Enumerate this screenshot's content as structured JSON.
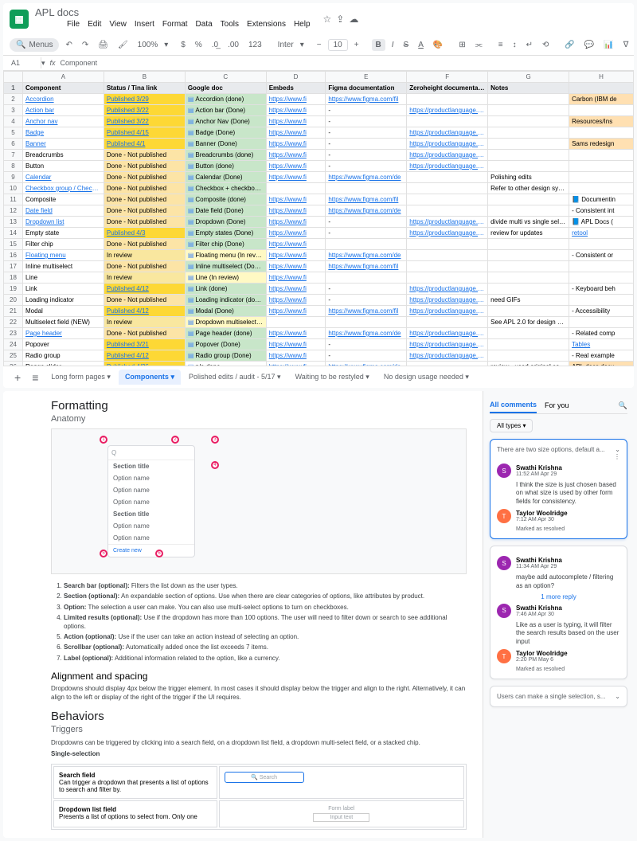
{
  "sheets": {
    "title": "APL docs",
    "menus": [
      "File",
      "Edit",
      "View",
      "Insert",
      "Format",
      "Data",
      "Tools",
      "Extensions",
      "Help"
    ],
    "toolbar": {
      "menus_btn": "Menus",
      "zoom": "100%",
      "currency": "$",
      "percent": "%",
      "decimal": ".0",
      "decimal2": ".00",
      "format_num": "123",
      "font": "Inter",
      "fontsize": "10",
      "minus": "−",
      "plus": "+"
    },
    "formula": {
      "cell": "A1",
      "value": "Component"
    },
    "columns": [
      "",
      "A",
      "B",
      "C",
      "D",
      "E",
      "F",
      "G",
      "H"
    ],
    "headers": [
      "Component",
      "Status / Tina link",
      "Google doc",
      "Embeds",
      "Figma documentation",
      "Zeroheight documentation",
      "Notes",
      ""
    ],
    "rows": [
      {
        "n": 2,
        "comp": "Accordion",
        "compLink": true,
        "status": "Published 3/29",
        "statusClass": "status-pub",
        "gdoc": "Accordion (done)",
        "gdocClass": "gdoc-done",
        "embed": "https://www.fi",
        "figma": "https://www.figma.com/fil",
        "zh": "",
        "notes": "",
        "h": "Carbon (IBM de",
        "hClass": "col-h"
      },
      {
        "n": 3,
        "comp": "Action bar",
        "compLink": true,
        "status": "Published 3/22",
        "statusClass": "status-pub",
        "gdoc": "Action bar (Done)",
        "gdocClass": "gdoc-done",
        "embed": "https://www.fi",
        "figma": "-",
        "zh": "https://productlanguage.adde",
        "notes": "",
        "h": ""
      },
      {
        "n": 4,
        "comp": "Anchor nav",
        "compLink": true,
        "status": "Published 3/22",
        "statusClass": "status-pub",
        "gdoc": "Anchor Nav (Done)",
        "gdocClass": "gdoc-done",
        "embed": "https://www.fi",
        "figma": "-",
        "zh": "",
        "notes": "",
        "h": "Resources/Ins",
        "hClass": "col-h"
      },
      {
        "n": 5,
        "comp": "Badge",
        "compLink": true,
        "status": "Published 4/15",
        "statusClass": "status-pub",
        "gdoc": "Badge (Done)",
        "gdocClass": "gdoc-done",
        "embed": "https://www.fi",
        "figma": "-",
        "zh": "https://productlanguage.adde",
        "notes": "",
        "h": ""
      },
      {
        "n": 6,
        "comp": "Banner",
        "compLink": true,
        "status": "Published 4/1",
        "statusClass": "status-pub",
        "gdoc": "Banner (Done)",
        "gdocClass": "gdoc-done",
        "embed": "https://www.fi",
        "figma": "-",
        "zh": "https://productlanguage.adde",
        "notes": "",
        "h": "Sams redesign",
        "hClass": "col-h"
      },
      {
        "n": 7,
        "comp": "Breadcrumbs",
        "status": "Done - Not published",
        "statusClass": "status-notpub",
        "gdoc": "Breadcrumbs (done)",
        "gdocClass": "gdoc-done",
        "embed": "https://www.fi",
        "figma": "-",
        "zh": "https://productlanguage.adde",
        "notes": "",
        "h": ""
      },
      {
        "n": 8,
        "comp": "Button",
        "status": "Done - Not published",
        "statusClass": "status-notpub",
        "gdoc": "Button (done)",
        "gdocClass": "gdoc-done",
        "embed": "https://www.fi",
        "figma": "-",
        "zh": "https://productlanguage.adde",
        "notes": "",
        "h": ""
      },
      {
        "n": 9,
        "comp": "Calendar",
        "compLink": true,
        "status": "Done - Not published",
        "statusClass": "status-notpub",
        "gdoc": "Calendar (Done)",
        "gdocClass": "gdoc-done",
        "embed": "https://www.fi",
        "figma": "https://www.figma.com/de",
        "zh": "",
        "notes": "Polishing edits",
        "h": ""
      },
      {
        "n": 10,
        "comp": "Checkbox group / Checkbox",
        "compLink": true,
        "status": "Done - Not published",
        "statusClass": "status-notpub",
        "gdoc": "Checkbox + checkbox group (done)",
        "gdocClass": "gdoc-done",
        "embed": "",
        "figma": "",
        "zh": "",
        "notes": "Refer to other design systems",
        "h": ""
      },
      {
        "n": 11,
        "comp": "Composite",
        "status": "Done - Not published",
        "statusClass": "status-notpub",
        "gdoc": "Composite (done)",
        "gdocClass": "gdoc-done",
        "embed": "https://www.fi",
        "figma": "https://www.figma.com/fil",
        "zh": "",
        "notes": "",
        "h": "📘 Documentin"
      },
      {
        "n": 12,
        "comp": "Date field",
        "compLink": true,
        "status": "Done - Not published",
        "statusClass": "status-notpub",
        "gdoc": "Date field (Done)",
        "gdocClass": "gdoc-done",
        "embed": "https://www.fi",
        "figma": "https://www.figma.com/de",
        "zh": "",
        "notes": "",
        "h": "- Consistent int"
      },
      {
        "n": 13,
        "comp": "Dropdown list",
        "compLink": true,
        "status": "Done - Not published",
        "statusClass": "status-notpub",
        "gdoc": "Dropdown (Done)",
        "gdocClass": "gdoc-done",
        "embed": "https://www.fi",
        "figma": "-",
        "zh": "https://productlanguage.adde",
        "notes": "divide multi vs single select",
        "h": "📘 APL Docs ("
      },
      {
        "n": 14,
        "comp": "Empty state",
        "status": "Published 4/3",
        "statusClass": "status-pub",
        "gdoc": "Empty states (Done)",
        "gdocClass": "gdoc-done",
        "embed": "https://www.fi",
        "figma": "-",
        "zh": "https://productlanguage.adde",
        "notes": "review for updates",
        "h": "retool",
        "hLink": true
      },
      {
        "n": 15,
        "comp": "Filter chip",
        "status": "Done - Not published",
        "statusClass": "status-notpub",
        "gdoc": "Filter chip (Done)",
        "gdocClass": "gdoc-done",
        "embed": "https://www.fi",
        "figma": "",
        "zh": "",
        "notes": "",
        "h": ""
      },
      {
        "n": 16,
        "comp": "Floating menu",
        "compLink": true,
        "status": "In review",
        "statusClass": "status-review",
        "gdoc": "Floating menu (In review)",
        "gdocClass": "gdoc-partial",
        "embed": "https://www.fi",
        "figma": "https://www.figma.com/de",
        "zh": "",
        "notes": "",
        "h": "- Consistent or"
      },
      {
        "n": 17,
        "comp": "Inline multiselect",
        "status": "Done - Not published",
        "statusClass": "status-notpub",
        "gdoc": "Inline multiselect (Done)",
        "gdocClass": "gdoc-done",
        "embed": "https://www.fi",
        "figma": "https://www.figma.com/fil",
        "zh": "",
        "notes": "",
        "h": ""
      },
      {
        "n": 18,
        "comp": "Line",
        "status": "In review",
        "statusClass": "status-review",
        "gdoc": "Line (In review)",
        "gdocClass": "gdoc-partial",
        "embed": "https://www.fi",
        "figma": "",
        "zh": "",
        "notes": "",
        "h": ""
      },
      {
        "n": 19,
        "comp": "Link",
        "status": "Published 4/12",
        "statusClass": "status-pub",
        "gdoc": "Link (done)",
        "gdocClass": "gdoc-done",
        "embed": "https://www.fi",
        "figma": "-",
        "zh": "https://productlanguage.adde",
        "notes": "",
        "h": "- Keyboard beh"
      },
      {
        "n": 20,
        "comp": "Loading indicator",
        "status": "Done - Not published",
        "statusClass": "status-notpub",
        "gdoc": "Loading indicator (done)",
        "gdocClass": "gdoc-done",
        "embed": "https://www.fi",
        "figma": "-",
        "zh": "https://productlanguage.adde",
        "notes": "need GIFs",
        "h": ""
      },
      {
        "n": 21,
        "comp": "Modal",
        "status": "Published 4/12",
        "statusClass": "status-pub",
        "gdoc": "Modal (Done)",
        "gdocClass": "gdoc-done",
        "embed": "https://www.fi",
        "figma": "https://www.figma.com/fil",
        "zh": "https://productlanguage.adde",
        "notes": "",
        "h": "- Accessibility"
      },
      {
        "n": 22,
        "comp": "Multiselect field (NEW)",
        "status": "In review",
        "statusClass": "status-review",
        "gdoc": "Dropdown multiselect fie…",
        "gdocClass": "gdoc-partial",
        "embed": "",
        "figma": "",
        "zh": "",
        "notes": "See APL 2.0 for design definition; reach out to swathi with any questions",
        "h": ""
      },
      {
        "n": 23,
        "comp": "Page header",
        "compLink": true,
        "status": "Done - Not published",
        "statusClass": "status-notpub",
        "gdoc": "Page header (done)",
        "gdocClass": "gdoc-done",
        "embed": "https://www.fi",
        "figma": "https://www.figma.com/de",
        "zh": "https://productlanguage.adde",
        "notes": "",
        "h": "- Related comp"
      },
      {
        "n": 24,
        "comp": "Popover",
        "status": "Published 3/21",
        "statusClass": "status-pub",
        "gdoc": "Popover (Done)",
        "gdocClass": "gdoc-done",
        "embed": "https://www.fi",
        "figma": "-",
        "zh": "https://productlanguage.adde",
        "notes": "",
        "h": "Tables",
        "hLink": true
      },
      {
        "n": 25,
        "comp": "Radio group",
        "status": "Published 4/12",
        "statusClass": "status-pub",
        "gdoc": "Radio group (Done)",
        "gdocClass": "gdoc-done",
        "embed": "https://www.fi",
        "figma": "-",
        "zh": "https://productlanguage.adde",
        "notes": "",
        "h": "- Real example"
      },
      {
        "n": 26,
        "comp": "Range slider",
        "status": "Published 4/26",
        "statusClass": "status-pub",
        "gdoc": "n/a done",
        "gdocClass": "",
        "embed": "https://www.fi",
        "figma": "https://www.figma.com/de",
        "zh": "",
        "notes": "review - used original content",
        "h": "APL docs docu",
        "hClass": "col-h"
      },
      {
        "n": 27,
        "comp": "Segmented switch",
        "status": "Published 3/26",
        "statusClass": "status-pub",
        "gdoc": "Segmented switch (Done)",
        "gdocClass": "gdoc-done",
        "embed": "https://www.fi",
        "figma": "-",
        "zh": "https://productlanguage.adde",
        "notes": "",
        "h": "Primer (Github",
        "hLink": true
      },
      {
        "n": 28,
        "comp": "Stacked chip",
        "status": "In review",
        "statusClass": "status-review",
        "gdoc": "Stacked chip (In review)",
        "gdocClass": "gdoc-partial",
        "embed": "https://www.fig",
        "figma": "https://www.figma.com/des",
        "zh": "",
        "notes": "See APL 2.0 for design definition",
        "h": ""
      },
      {
        "n": 29,
        "comp": "Tabs",
        "compLink": true,
        "status": "Done - Not published",
        "statusClass": "status-notpub",
        "gdoc": "Tabs (Done)",
        "gdocClass": "gdoc-done",
        "embed": "https://www.fig",
        "figma": "",
        "zh": "",
        "notes": "",
        "h": "- Hemingway"
      },
      {
        "n": 30,
        "comp": "Text area",
        "compLink": true,
        "status": "Done - Not published",
        "statusClass": "status-notpub",
        "gdoc": "Text area (Done)",
        "gdocClass": "gdoc-done",
        "embed": "https://www.fi",
        "figma": "-",
        "zh": "https://productlanguage.adde",
        "notes": "",
        "h": ""
      },
      {
        "n": 31,
        "comp": "Text input (text field)",
        "compLink": true,
        "status": "Done - Not published",
        "statusClass": "status-notpub",
        "gdoc": "Text field/text input (done)",
        "gdocClass": "gdoc-done",
        "embed": "https://www.fi",
        "figma": "",
        "zh": "",
        "notes": "",
        "h": ""
      }
    ],
    "tabs": [
      "Long form pages",
      "Components",
      "Polished edits / audit - 5/17",
      "Waiting to be restyled",
      "No design usage needed"
    ],
    "active_tab": 1
  },
  "doc": {
    "title": "Formatting",
    "subtitle": "Anatomy",
    "anatomy": {
      "search_ph": "Q",
      "section": "Section title",
      "options": [
        "Option name",
        "Option name",
        "Option name"
      ],
      "section2": "Section title",
      "options2": [
        "Option name",
        "Option name"
      ],
      "create": "Create new"
    },
    "list": [
      {
        "t": "Search bar (optional):",
        "d": "Filters the list down as the user types."
      },
      {
        "t": "Section (optional):",
        "d": "An expandable section of options. Use when there are clear categories of options, like attributes by product."
      },
      {
        "t": "Option:",
        "d": "The selection a user can make. You can also use multi-select options to turn on checkboxes."
      },
      {
        "t": "Limited results (optional):",
        "d": "Use if the dropdown has more than 100 options. The user will need to filter down or search to see additional options."
      },
      {
        "t": "Action (optional):",
        "d": "Use if the user can take an action instead of selecting an option."
      },
      {
        "t": "Scrollbar (optional):",
        "d": "Automatically added once the list exceeds 7 items."
      },
      {
        "t": "Label (optional):",
        "d": "Additional information related to the option, like a currency."
      }
    ],
    "align_h": "Alignment and spacing",
    "align_p": "Dropdowns should display 4px below the trigger element. In most cases it should display below the trigger and align to the right. Alternatively, it can align to the left or display of the right of the trigger if the UI requires.",
    "behav_h": "Behaviors",
    "trig_h": "Triggers",
    "trig_p": "Dropdowns can be triggered by clicking into a search field, on a dropdown list field, a dropdown multi-select field, or a stacked chip.",
    "single_h": "Single-selection",
    "table": [
      {
        "label": "Search field",
        "desc": "Can trigger a dropdown that presents a list of options to search and filter by.",
        "mock": "search",
        "mock_text": "🔍 Search"
      },
      {
        "label": "Dropdown list field",
        "desc": "Presents a list of options to select from. Only one",
        "mock": "form",
        "mock_label": "Form label",
        "mock_text": "Input text"
      }
    ]
  },
  "comments": {
    "tabs": [
      "All comments",
      "For you"
    ],
    "filter": "All types",
    "threads": [
      {
        "summary": "There are two size options, default a...",
        "active": true,
        "items": [
          {
            "user": "Swathi Krishna",
            "time": "11:52 AM Apr 29",
            "avatar": "S",
            "text": "I think the size is just chosen based on what size is used by other form fields for consistency."
          },
          {
            "user": "Taylor Woolridge",
            "time": "7:12 AM Apr 30",
            "avatar": "T",
            "avatarClass": "t",
            "resolved": "Marked as resolved"
          }
        ]
      },
      {
        "items": [
          {
            "user": "Swathi Krishna",
            "time": "11:34 AM Apr 29",
            "avatar": "S",
            "text": "maybe add autocomplete / filtering as an option?"
          }
        ],
        "more": "1 more reply",
        "items2": [
          {
            "user": "Swathi Krishna",
            "time": "7:46 AM Apr 30",
            "avatar": "S",
            "text": "Like as a user is typing, it will filter the search results based on the user input"
          },
          {
            "user": "Taylor Woolridge",
            "time": "2:20 PM May 6",
            "avatar": "T",
            "avatarClass": "t",
            "resolved": "Marked as resolved"
          }
        ]
      },
      {
        "summary": "Users can make a single selection, s..."
      }
    ]
  }
}
